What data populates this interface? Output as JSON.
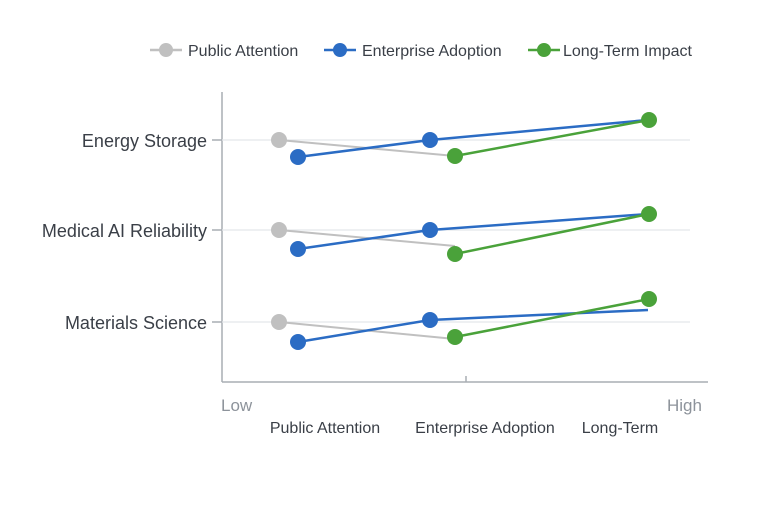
{
  "chart_data": {
    "type": "line",
    "title": "",
    "categories": [
      "Energy Storage",
      "Medical AI Reliability",
      "Materials Science"
    ],
    "xlabel": "",
    "ylabel": "",
    "x_axis": {
      "low_label": "Low",
      "high_label": "High",
      "range": [
        0,
        100
      ]
    },
    "x_tick_labels": [
      {
        "label": "Public Attention",
        "value": 22
      },
      {
        "label": "Enterprise Adoption",
        "value": 54
      },
      {
        "label": "Long-Term",
        "value": 82
      }
    ],
    "series": [
      {
        "name": "Public Attention",
        "color": "#c0c0c0",
        "legend_marker": "gray-dot",
        "values": [
          12,
          12,
          12
        ],
        "marker_offset": [
          -1,
          -1,
          -1
        ]
      },
      {
        "name": "Enterprise Adoption",
        "color": "#2b6cc4",
        "legend_marker": "blue-dot",
        "values": [
          16,
          16,
          16
        ],
        "marker_offset": [
          1,
          1,
          1
        ]
      },
      {
        "name": "Long-Term Impact",
        "color": "#4aa23a",
        "legend_marker": "green-dot",
        "values": [
          48,
          48,
          48
        ],
        "marker_offset": [
          1,
          1,
          1
        ]
      }
    ],
    "path_points": {
      "Energy Storage": {
        "gray": [
          12,
          48
        ],
        "blue": [
          16,
          43,
          88
        ],
        "green": [
          48,
          88
        ]
      },
      "Medical AI Reliability": {
        "gray": [
          12,
          48
        ],
        "blue": [
          16,
          43,
          88
        ],
        "green": [
          48,
          88
        ]
      },
      "Materials Science": {
        "gray": [
          12,
          48
        ],
        "blue": [
          16,
          43,
          88
        ],
        "green": [
          48,
          88
        ]
      }
    },
    "legend_position": "top-center",
    "grid": true
  }
}
